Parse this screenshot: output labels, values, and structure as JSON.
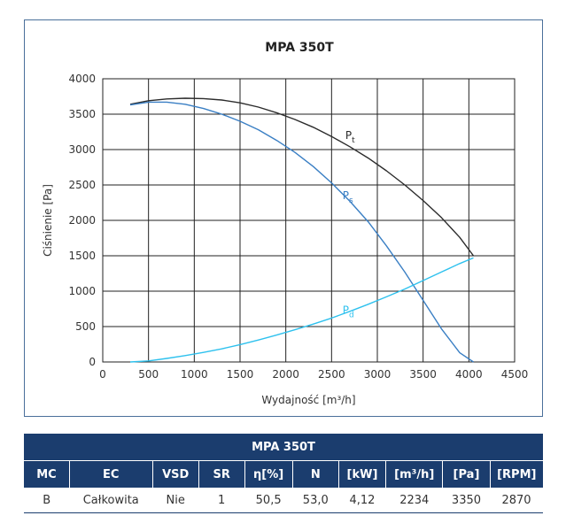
{
  "chart_data": {
    "type": "line",
    "title": "MPA 350T",
    "xlabel": "Wydajność [m³/h]",
    "ylabel": "Ciśnienie [Pa]",
    "xlim": [
      0,
      4500
    ],
    "ylim": [
      0,
      4000
    ],
    "xticks": [
      0,
      500,
      1000,
      1500,
      2000,
      2500,
      3000,
      3500,
      4000,
      4500
    ],
    "yticks": [
      0,
      500,
      1000,
      1500,
      2000,
      2500,
      3000,
      3500,
      4000
    ],
    "grid": true,
    "series": [
      {
        "name": "Pt",
        "label_main": "P",
        "label_sub": "t",
        "color": "#2b2b2b",
        "x": [
          300,
          500,
          700,
          900,
          1100,
          1300,
          1500,
          1700,
          1900,
          2100,
          2300,
          2500,
          2700,
          2900,
          3100,
          3300,
          3500,
          3700,
          3900,
          4050
        ],
        "y": [
          3640,
          3690,
          3715,
          3725,
          3720,
          3700,
          3660,
          3600,
          3520,
          3425,
          3315,
          3185,
          3040,
          2880,
          2700,
          2500,
          2280,
          2040,
          1760,
          1500
        ]
      },
      {
        "name": "Ps",
        "label_main": "P",
        "label_sub": "s",
        "color": "#3a7fc4",
        "x": [
          300,
          500,
          700,
          900,
          1100,
          1300,
          1500,
          1700,
          1900,
          2100,
          2300,
          2500,
          2700,
          2900,
          3100,
          3300,
          3500,
          3700,
          3900,
          4050
        ],
        "y": [
          3630,
          3670,
          3670,
          3640,
          3580,
          3500,
          3400,
          3280,
          3130,
          2960,
          2760,
          2530,
          2270,
          1980,
          1640,
          1270,
          870,
          470,
          130,
          0
        ]
      },
      {
        "name": "Pd",
        "label_main": "P",
        "label_sub": "d",
        "color": "#2ec1ee",
        "x": [
          300,
          500,
          700,
          900,
          1100,
          1300,
          1500,
          1700,
          1900,
          2100,
          2300,
          2500,
          2700,
          2900,
          3100,
          3300,
          3500,
          3700,
          3900,
          4050
        ],
        "y": [
          0,
          15,
          50,
          90,
          135,
          185,
          245,
          310,
          380,
          455,
          535,
          620,
          715,
          815,
          920,
          1030,
          1150,
          1270,
          1390,
          1470
        ]
      }
    ]
  },
  "table": {
    "title": "MPA 350T",
    "headers": [
      "MC",
      "EC",
      "VSD",
      "SR",
      "η[%]",
      "N",
      "[kW]",
      "[m³/h]",
      "[Pa]",
      "[RPM]"
    ],
    "row": [
      "B",
      "Całkowita",
      "Nie",
      "1",
      "50,5",
      "53,0",
      "4,12",
      "2234",
      "3350",
      "2870"
    ]
  }
}
